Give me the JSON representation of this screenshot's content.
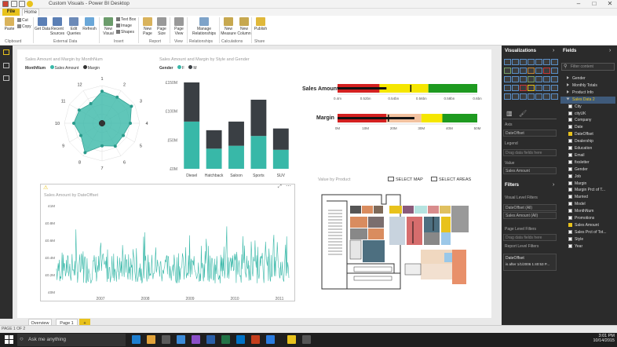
{
  "titlebar": {
    "title": "Custom Visuals - Power BI Desktop",
    "minimize": "–",
    "maximize": "□",
    "close": "✕"
  },
  "tabs": {
    "file": "File",
    "home": "Home"
  },
  "ribbon": {
    "buttons": [
      {
        "label": "Paste",
        "color": "#d9b35c"
      },
      {
        "label": "Get\nData",
        "color": "#5b7fb5"
      },
      {
        "label": "Recent\nSources",
        "color": "#5b7fb5"
      },
      {
        "label": "Edit\nQueries",
        "color": "#6c8ab8"
      },
      {
        "label": "Refresh",
        "color": "#6aa7d8"
      },
      {
        "label": "New\nVisual",
        "color": "#6b9c6b"
      },
      {
        "label": "New\nPage",
        "color": "#d9b35c"
      },
      {
        "label": "Page\nSize",
        "color": "#999999"
      },
      {
        "label": "Page\nView",
        "color": "#999999"
      },
      {
        "label": "Manage\nRelationships",
        "color": "#7ea3c9"
      },
      {
        "label": "New\nMeasure",
        "color": "#c7a84f"
      },
      {
        "label": "New\nColumn",
        "color": "#c7a84f"
      },
      {
        "label": "Publish",
        "color": "#e0b83a"
      }
    ],
    "small": {
      "cut": "Cut",
      "copy": "Copy",
      "textbox": "Text Box",
      "image": "Image",
      "shapes": "Shapes"
    },
    "groups": [
      "Clipboard",
      "External Data",
      "Insert",
      "Report",
      "View",
      "Relationships",
      "Calculations",
      "Share"
    ]
  },
  "radar": {
    "title": "Sales Amount and Margin by MonthNum",
    "legend_label": "MonthNum",
    "legend_items": [
      {
        "name": "Sales Amount",
        "color": "#38b8a8"
      },
      {
        "name": "Margin",
        "color": "#333333"
      }
    ],
    "labels": [
      "1",
      "2",
      "3",
      "4",
      "5",
      "6",
      "7",
      "8",
      "9",
      "10",
      "11",
      "12"
    ]
  },
  "chart_data": [
    {
      "type": "radar",
      "title": "Sales Amount and Margin by MonthNum",
      "categories": [
        "1",
        "2",
        "3",
        "4",
        "5",
        "6",
        "7",
        "8",
        "9",
        "10",
        "11",
        "12"
      ],
      "series": [
        {
          "name": "Sales Amount",
          "values": [
            0.85,
            0.8,
            0.9,
            0.75,
            0.65,
            0.7,
            0.6,
            0.9,
            0.65,
            0.75,
            0.7,
            0.6
          ]
        },
        {
          "name": "Margin",
          "values": [
            0.08,
            0.08,
            0.08,
            0.08,
            0.08,
            0.08,
            0.08,
            0.08,
            0.08,
            0.08,
            0.08,
            0.08
          ]
        }
      ]
    },
    {
      "type": "bar",
      "title": "Sales Amount and Margin by Style and Gender",
      "legend_label": "Gender",
      "categories": [
        "Diesel",
        "Hatchback",
        "Saloon",
        "Sports",
        "SUV"
      ],
      "series": [
        {
          "name": "F",
          "values": [
            82,
            35,
            40,
            57,
            33
          ],
          "color": "#38b8a8"
        },
        {
          "name": "M",
          "values": [
            68,
            32,
            42,
            63,
            37
          ],
          "color": "#3a3f44"
        }
      ],
      "yticks": [
        "£0M",
        "£50M",
        "£100M",
        "£150M"
      ],
      "ylim": [
        0,
        150
      ]
    },
    {
      "type": "bullet",
      "title": "Sales Amount",
      "ticks": [
        "0.4m",
        "0.52bn",
        "0.54bn",
        "0.56bn",
        "0.58bn",
        "0.6bn"
      ],
      "bands": [
        0.0,
        0.3,
        0.5,
        0.65,
        1.0
      ],
      "value": 0.35,
      "target": 0.52
    },
    {
      "type": "bullet",
      "title": "Margin",
      "ticks": [
        "0M",
        "10M",
        "20M",
        "30M",
        "40M",
        "50M"
      ],
      "bands": [
        0.0,
        0.35,
        0.6,
        0.75,
        1.0
      ],
      "value": 0.55,
      "target": 0.36
    },
    {
      "type": "line",
      "title": "Sales Amount by DateOffset",
      "xlabels": [
        "2007",
        "2008",
        "2009",
        "2010",
        "2011"
      ],
      "yticks": [
        "£0M",
        "£0.2M",
        "£0.4M",
        "£0.6M",
        "£0.8M",
        "£1M"
      ],
      "ylim": [
        0,
        1
      ]
    }
  ],
  "bar": {
    "title": "Sales Amount and Margin by Style and Gender",
    "legend_label": "Gender",
    "f": "F",
    "m": "M"
  },
  "bullet": {
    "sales_label": "Sales Amount",
    "margin_label": "Margin"
  },
  "line": {
    "title": "Sales Amount by DateOffset"
  },
  "map": {
    "title": "Value by Product",
    "select_map": "SELECT MAP",
    "select_areas": "SELECT AREAS"
  },
  "viz_pane": {
    "title": "Visualizations",
    "axis": "Axis",
    "axis_value": "DateOffset",
    "legend": "Legend",
    "legend_placeholder": "Drag data fields here",
    "value": "Value",
    "value_value": "Sales Amount",
    "filters_title": "Filters",
    "visual_filters": "Visual Level Filters",
    "filter1": "DateOffset (All)",
    "filter2": "Sales Amount (All)",
    "page_filters": "Page Level Filters",
    "page_placeholder": "Drag data fields here",
    "report_filters": "Report Level Filters",
    "card_title": "DateOffset",
    "card_value": "is after 1/1/2006 1:40:53 P..."
  },
  "fields_pane": {
    "title": "Fields",
    "search_placeholder": "Filter content",
    "items": [
      {
        "label": "Gender",
        "type": "table"
      },
      {
        "label": "Monthly Totals",
        "type": "table"
      },
      {
        "label": "Product Info",
        "type": "table"
      },
      {
        "label": "Sales Data 2",
        "type": "table-open"
      },
      {
        "label": "City",
        "type": "field"
      },
      {
        "label": "cityUK",
        "type": "field"
      },
      {
        "label": "Company",
        "type": "field"
      },
      {
        "label": "Date",
        "type": "field"
      },
      {
        "label": "DateOffset",
        "type": "field-checked"
      },
      {
        "label": "Dealership",
        "type": "field"
      },
      {
        "label": "Education",
        "type": "field"
      },
      {
        "label": "Email",
        "type": "field"
      },
      {
        "label": "fixsletter",
        "type": "field"
      },
      {
        "label": "Gender",
        "type": "field"
      },
      {
        "label": "Job",
        "type": "field"
      },
      {
        "label": "Margin",
        "type": "field"
      },
      {
        "label": "Margin Prct of T...",
        "type": "field"
      },
      {
        "label": "Married",
        "type": "field"
      },
      {
        "label": "Model",
        "type": "field"
      },
      {
        "label": "MonthNum",
        "type": "field"
      },
      {
        "label": "Promotions",
        "type": "field"
      },
      {
        "label": "Sales Amount",
        "type": "field-checked"
      },
      {
        "label": "Sales Prct of Tot...",
        "type": "field"
      },
      {
        "label": "Style",
        "type": "field"
      },
      {
        "label": "Year",
        "type": "field"
      }
    ]
  },
  "pages": {
    "overview": "Overview",
    "page1": "Page 1",
    "add": "+"
  },
  "status": {
    "page": "PAGE 1 OF 2"
  },
  "taskbar": {
    "search_placeholder": "Ask me anything",
    "time": "3:01 PM",
    "date": "10/14/2015"
  }
}
